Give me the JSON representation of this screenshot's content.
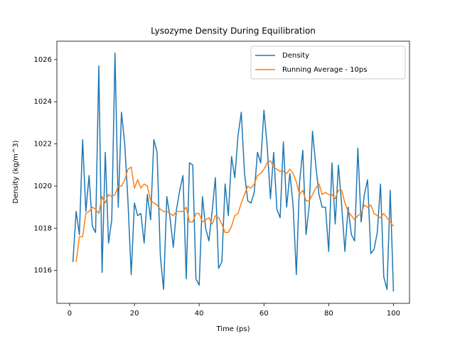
{
  "chart_data": {
    "type": "line",
    "title": "Lysozyme Density During Equilibration",
    "xlabel": "Time (ps)",
    "ylabel": "Density (kg/m^3)",
    "xlim": [
      -3.95,
      104.95
    ],
    "ylim": [
      1014.44,
      1026.87
    ],
    "xticks": [
      0,
      20,
      40,
      60,
      80,
      100
    ],
    "yticks": [
      1016,
      1018,
      1020,
      1022,
      1024,
      1026
    ],
    "grid": false,
    "legend": "upper right",
    "series": [
      {
        "name": "Density",
        "color": "#1f77b4",
        "x": [
          1,
          2,
          3,
          4,
          5,
          6,
          7,
          8,
          9,
          10,
          11,
          12,
          13,
          14,
          15,
          16,
          17,
          18,
          19,
          20,
          21,
          22,
          23,
          24,
          25,
          26,
          27,
          28,
          29,
          30,
          31,
          32,
          33,
          34,
          35,
          36,
          37,
          38,
          39,
          40,
          41,
          42,
          43,
          44,
          45,
          46,
          47,
          48,
          49,
          50,
          51,
          52,
          53,
          54,
          55,
          56,
          57,
          58,
          59,
          60,
          61,
          62,
          63,
          64,
          65,
          66,
          67,
          68,
          69,
          70,
          71,
          72,
          73,
          74,
          75,
          76,
          77,
          78,
          79,
          80,
          81,
          82,
          83,
          84,
          85,
          86,
          87,
          88,
          89,
          90,
          91,
          92,
          93,
          94,
          95,
          96,
          97,
          98,
          99,
          100
        ],
        "values": [
          1016.4,
          1018.8,
          1017.7,
          1022.2,
          1018.8,
          1020.5,
          1018.1,
          1017.8,
          1025.7,
          1015.9,
          1021.6,
          1017.3,
          1018.4,
          1026.3,
          1019.0,
          1023.5,
          1022.0,
          1019.3,
          1015.8,
          1019.2,
          1018.6,
          1018.7,
          1017.3,
          1019.6,
          1018.4,
          1022.2,
          1021.6,
          1016.7,
          1015.1,
          1019.5,
          1018.5,
          1017.1,
          1018.9,
          1019.8,
          1020.5,
          1015.6,
          1021.1,
          1021.0,
          1015.6,
          1015.3,
          1019.5,
          1018.0,
          1017.4,
          1018.8,
          1020.4,
          1016.1,
          1016.4,
          1020.1,
          1018.6,
          1021.4,
          1020.4,
          1022.4,
          1023.5,
          1020.6,
          1019.3,
          1019.2,
          1019.7,
          1021.6,
          1021.1,
          1023.6,
          1021.9,
          1019.4,
          1021.6,
          1018.9,
          1018.5,
          1022.1,
          1019.0,
          1020.6,
          1019.1,
          1015.8,
          1020.2,
          1021.7,
          1017.7,
          1019.1,
          1022.6,
          1021.0,
          1019.6,
          1019.0,
          1019.0,
          1016.9,
          1021.1,
          1018.2,
          1021.0,
          1019.1,
          1016.9,
          1019.0,
          1017.7,
          1017.4,
          1021.8,
          1018.3,
          1019.6,
          1020.3,
          1016.8,
          1017.0,
          1017.8,
          1020.1,
          1015.7,
          1015.1,
          1019.8,
          1015.0
        ]
      },
      {
        "name": "Running Average - 10ps",
        "color": "#ff7f0e",
        "x": [
          2,
          3,
          4,
          5,
          6,
          7,
          8,
          9,
          10,
          11,
          12,
          13,
          14,
          15,
          16,
          17,
          18,
          19,
          20,
          21,
          22,
          23,
          24,
          25,
          26,
          27,
          28,
          29,
          30,
          31,
          32,
          33,
          34,
          35,
          36,
          37,
          38,
          39,
          40,
          41,
          42,
          43,
          44,
          45,
          46,
          47,
          48,
          49,
          50,
          51,
          52,
          53,
          54,
          55,
          56,
          57,
          58,
          59,
          60,
          61,
          62,
          63,
          64,
          65,
          66,
          67,
          68,
          69,
          70,
          71,
          72,
          73,
          74,
          75,
          76,
          77,
          78,
          79,
          80,
          81,
          82,
          83,
          84,
          85,
          86,
          87,
          88,
          89,
          90,
          91,
          92,
          93,
          94,
          95,
          96,
          97,
          98,
          99,
          100
        ],
        "values": [
          1016.4,
          1017.6,
          1017.6,
          1018.7,
          1018.8,
          1019.0,
          1018.9,
          1018.7,
          1019.5,
          1019.2,
          1019.6,
          1019.5,
          1019.6,
          1020.0,
          1020.0,
          1020.3,
          1020.8,
          1020.9,
          1019.9,
          1020.3,
          1019.9,
          1020.1,
          1020.0,
          1019.3,
          1019.2,
          1019.1,
          1018.9,
          1018.8,
          1018.8,
          1018.7,
          1018.6,
          1018.8,
          1018.8,
          1018.8,
          1019.0,
          1018.3,
          1018.3,
          1018.7,
          1018.7,
          1018.3,
          1018.4,
          1018.5,
          1018.2,
          1018.6,
          1018.5,
          1018.2,
          1017.8,
          1017.8,
          1018.1,
          1018.6,
          1018.7,
          1019.2,
          1019.6,
          1020.0,
          1019.9,
          1020.1,
          1020.5,
          1020.6,
          1020.8,
          1021.1,
          1021.2,
          1020.9,
          1020.8,
          1020.7,
          1020.7,
          1020.6,
          1020.8,
          1020.6,
          1020.2,
          1019.6,
          1019.8,
          1019.3,
          1019.3,
          1019.6,
          1019.9,
          1020.1,
          1019.6,
          1019.7,
          1019.6,
          1019.6,
          1019.4,
          1019.8,
          1019.8,
          1019.2,
          1018.8,
          1018.6,
          1018.4,
          1018.6,
          1018.7,
          1019.1,
          1019.0,
          1019.1,
          1018.7,
          1018.6,
          1018.5,
          1018.7,
          1018.5,
          1018.3,
          1018.1
        ]
      }
    ]
  }
}
